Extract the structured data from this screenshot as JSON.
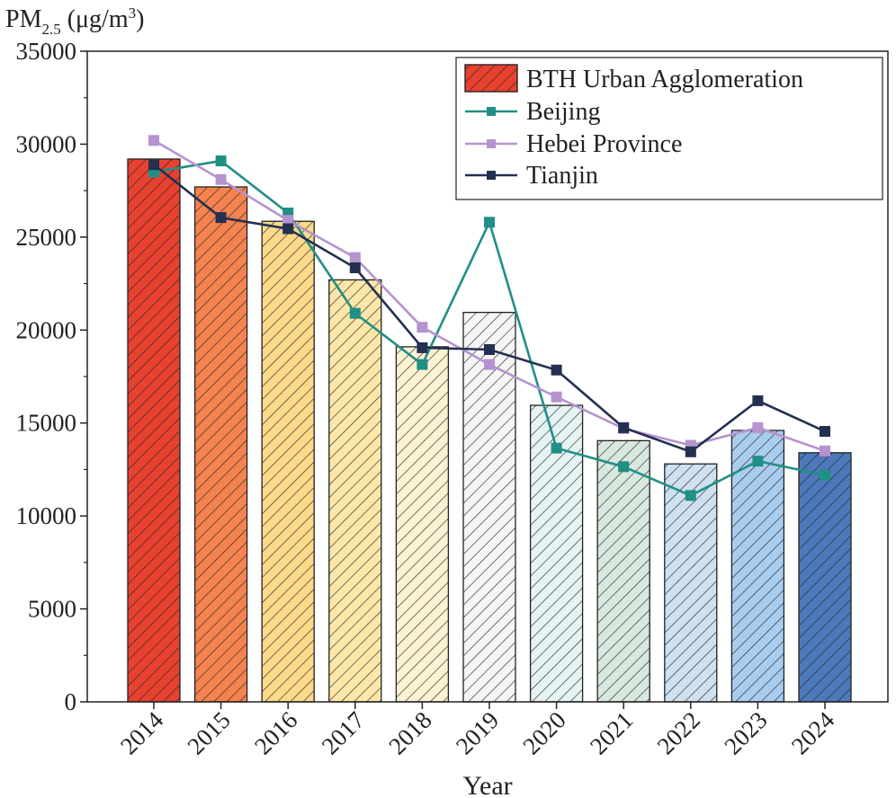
{
  "chart_data": {
    "type": "bar",
    "title": "",
    "ylabel": {
      "main": "PM",
      "sub": "2.5",
      "unit_pre": " (μg/m",
      "unit_sup": "3",
      "unit_post": ")"
    },
    "xlabel": "Year",
    "ylim": [
      0,
      35000
    ],
    "yticks": [
      0,
      5000,
      10000,
      15000,
      20000,
      25000,
      30000,
      35000
    ],
    "categories": [
      "2014",
      "2015",
      "2016",
      "2017",
      "2018",
      "2019",
      "2020",
      "2021",
      "2022",
      "2023",
      "2024"
    ],
    "bars": {
      "name": "BTH Urban Agglomeration",
      "values": [
        29200,
        27700,
        25850,
        22700,
        19100,
        20950,
        15950,
        14050,
        12800,
        14600,
        13400
      ],
      "colors": [
        "#e8412f",
        "#f4834f",
        "#fdd98a",
        "#fde7a8",
        "#fdf1d4",
        "#f5f5f5",
        "#e6f3f3",
        "#d8e8de",
        "#cfe0ee",
        "#a9cdef",
        "#4d79bc"
      ]
    },
    "series": [
      {
        "name": "Beijing",
        "color": "#218f86",
        "marker": "square",
        "values": [
          28500,
          29100,
          26300,
          20900,
          18150,
          25800,
          13650,
          12650,
          11100,
          12950,
          12200
        ]
      },
      {
        "name": "Hebei Province",
        "color": "#b593cf",
        "marker": "square",
        "values": [
          30200,
          28100,
          25900,
          23900,
          20150,
          18150,
          16400,
          14700,
          13800,
          14750,
          13500
        ]
      },
      {
        "name": "Tianjin",
        "color": "#233050",
        "marker": "square",
        "values": [
          28900,
          26050,
          25450,
          23350,
          19050,
          18950,
          17850,
          14750,
          13450,
          16200,
          14550
        ]
      }
    ],
    "legend": {
      "position": "top-right",
      "entries": [
        "BTH Urban Agglomeration",
        "Beijing",
        "Hebei Province",
        "Tianjin"
      ]
    },
    "grid": false
  }
}
